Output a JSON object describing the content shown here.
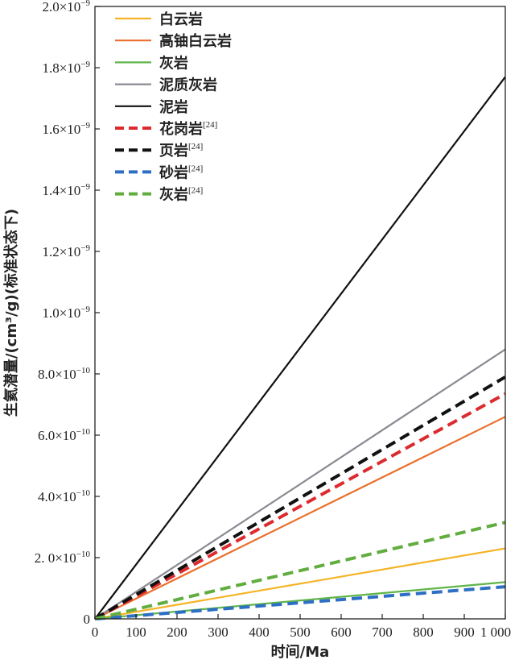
{
  "chart_data": {
    "type": "line",
    "xlabel": "时间/Ma",
    "ylabel": "生氦潜量/(cm³/g)(标准状态下)",
    "xlim": [
      0,
      1000
    ],
    "ylim": [
      0,
      2e-09
    ],
    "x_ticks": [
      {
        "value": 0,
        "label": "0"
      },
      {
        "value": 100,
        "label": "100"
      },
      {
        "value": 200,
        "label": "200"
      },
      {
        "value": 300,
        "label": "300"
      },
      {
        "value": 400,
        "label": "400"
      },
      {
        "value": 500,
        "label": "500"
      },
      {
        "value": 600,
        "label": "600"
      },
      {
        "value": 700,
        "label": "700"
      },
      {
        "value": 800,
        "label": "800"
      },
      {
        "value": 900,
        "label": "900"
      },
      {
        "value": 1000,
        "label": "1 000"
      }
    ],
    "y_ticks": [
      {
        "value": 0,
        "mant": "0",
        "exp": ""
      },
      {
        "value": 2e-10,
        "mant": "2. 0×10",
        "exp": "−10"
      },
      {
        "value": 4e-10,
        "mant": "4.0×10",
        "exp": "−10"
      },
      {
        "value": 6e-10,
        "mant": "6.0×10",
        "exp": "−10"
      },
      {
        "value": 8e-10,
        "mant": "8.0×10",
        "exp": "−10"
      },
      {
        "value": 1e-09,
        "mant": "1.0×10",
        "exp": "−9"
      },
      {
        "value": 1.2e-09,
        "mant": "1.2×10",
        "exp": "−9"
      },
      {
        "value": 1.4e-09,
        "mant": "1.4×10",
        "exp": "−9"
      },
      {
        "value": 1.6e-09,
        "mant": "1.6×10",
        "exp": "−9"
      },
      {
        "value": 1.8e-09,
        "mant": "1.8×10",
        "exp": "−9"
      },
      {
        "value": 2e-09,
        "mant": "2.0×10",
        "exp": "−9"
      }
    ],
    "legend_position": "top-left",
    "series": [
      {
        "name": "白云岩",
        "ref": "",
        "color": "#f5b324",
        "dashed": false,
        "x": [
          0,
          1000
        ],
        "y": [
          0,
          2.3e-10
        ]
      },
      {
        "name": "高铀白云岩",
        "ref": "",
        "color": "#ea6f2d",
        "dashed": false,
        "x": [
          0,
          1000
        ],
        "y": [
          0,
          6.6e-10
        ]
      },
      {
        "name": "灰岩",
        "ref": "",
        "color": "#5fb548",
        "dashed": false,
        "x": [
          0,
          1000
        ],
        "y": [
          0,
          1.2e-10
        ]
      },
      {
        "name": "泥质灰岩",
        "ref": "",
        "color": "#8a8a93",
        "dashed": false,
        "x": [
          0,
          1000
        ],
        "y": [
          0,
          8.8e-10
        ]
      },
      {
        "name": "泥岩",
        "ref": "",
        "color": "#111111",
        "dashed": false,
        "x": [
          0,
          1000
        ],
        "y": [
          0,
          1.77e-09
        ]
      },
      {
        "name": "花岗岩",
        "ref": "[24]",
        "color": "#dc2b2f",
        "dashed": true,
        "x": [
          0,
          1000
        ],
        "y": [
          0,
          7.35e-10
        ]
      },
      {
        "name": "页岩",
        "ref": "[24]",
        "color": "#111111",
        "dashed": true,
        "x": [
          0,
          1000
        ],
        "y": [
          0,
          7.9e-10
        ]
      },
      {
        "name": "砂岩",
        "ref": "[24]",
        "color": "#2d6fc4",
        "dashed": true,
        "x": [
          0,
          1000
        ],
        "y": [
          0,
          1.05e-10
        ]
      },
      {
        "name": "灰岩",
        "ref": "[24]",
        "color": "#62ad3f",
        "dashed": true,
        "x": [
          0,
          1000
        ],
        "y": [
          0,
          3.15e-10
        ]
      }
    ]
  }
}
